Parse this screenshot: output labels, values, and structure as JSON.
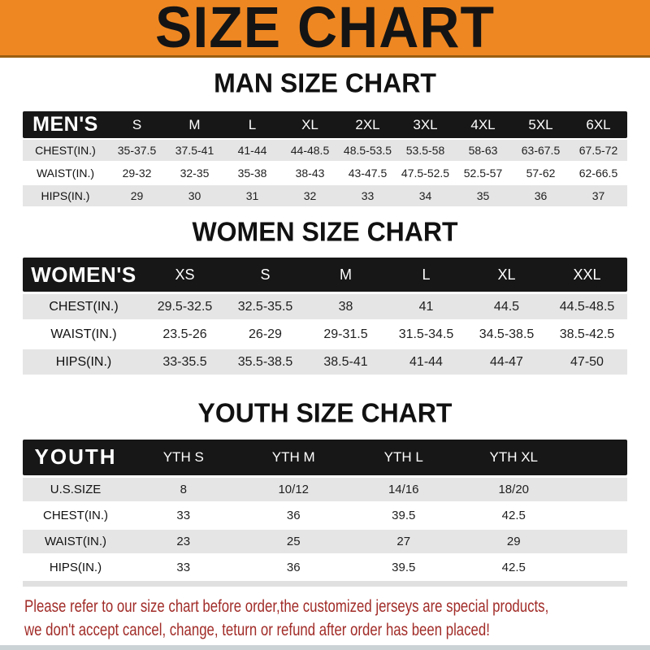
{
  "banner": {
    "title": "SIZE CHART"
  },
  "sections": [
    {
      "heading": "MAN SIZE CHART",
      "label": "MEN'S",
      "columns": [
        "S",
        "M",
        "L",
        "XL",
        "2XL",
        "3XL",
        "4XL",
        "5XL",
        "6XL"
      ],
      "rows": [
        {
          "label": "CHEST(IN.)",
          "values": [
            "35-37.5",
            "37.5-41",
            "41-44",
            "44-48.5",
            "48.5-53.5",
            "53.5-58",
            "58-63",
            "63-67.5",
            "67.5-72"
          ]
        },
        {
          "label": "WAIST(IN.)",
          "values": [
            "29-32",
            "32-35",
            "35-38",
            "38-43",
            "43-47.5",
            "47.5-52.5",
            "52.5-57",
            "57-62",
            "62-66.5"
          ]
        },
        {
          "label": "HIPS(IN.)",
          "values": [
            "29",
            "30",
            "31",
            "32",
            "33",
            "34",
            "35",
            "36",
            "37"
          ]
        }
      ]
    },
    {
      "heading": "WOMEN SIZE CHART",
      "label": "WOMEN'S",
      "columns": [
        "XS",
        "S",
        "M",
        "L",
        "XL",
        "XXL"
      ],
      "rows": [
        {
          "label": "CHEST(IN.)",
          "values": [
            "29.5-32.5",
            "32.5-35.5",
            "38",
            "41",
            "44.5",
            "44.5-48.5"
          ]
        },
        {
          "label": "WAIST(IN.)",
          "values": [
            "23.5-26",
            "26-29",
            "29-31.5",
            "31.5-34.5",
            "34.5-38.5",
            "38.5-42.5"
          ]
        },
        {
          "label": "HIPS(IN.)",
          "values": [
            "33-35.5",
            "35.5-38.5",
            "38.5-41",
            "41-44",
            "44-47",
            "47-50"
          ]
        }
      ]
    },
    {
      "heading": "YOUTH SIZE CHART",
      "label": "YOUTH",
      "columns": [
        "YTH S",
        "YTH M",
        "YTH L",
        "YTH XL"
      ],
      "rows": [
        {
          "label": "U.S.SIZE",
          "values": [
            "8",
            "10/12",
            "14/16",
            "18/20"
          ]
        },
        {
          "label": "CHEST(IN.)",
          "values": [
            "33",
            "36",
            "39.5",
            "42.5"
          ]
        },
        {
          "label": "WAIST(IN.)",
          "values": [
            "23",
            "25",
            "27",
            "29"
          ]
        },
        {
          "label": "HIPS(IN.)",
          "values": [
            "33",
            "36",
            "39.5",
            "42.5"
          ]
        }
      ]
    }
  ],
  "footer": {
    "line1": "Please refer to our size chart before order,the customized jerseys are special products,",
    "line2": "we don't accept cancel, change, teturn or refund after order has been placed!"
  },
  "colors": {
    "banner_orange": "#ee8722",
    "band_black": "#171717",
    "row_gray": "#e5e5e5",
    "footer_red": "#a12c28"
  }
}
